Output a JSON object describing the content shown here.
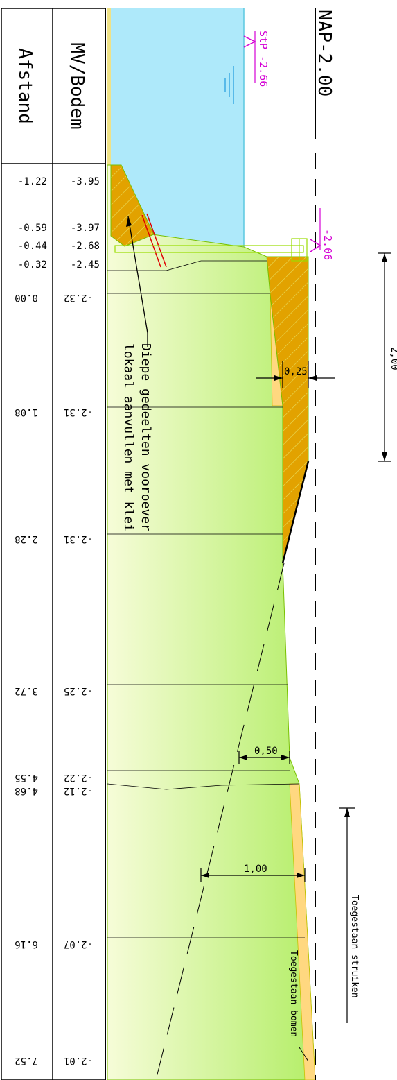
{
  "header": {
    "col1": "Afstand",
    "col2": "MV/Bodem",
    "reference": "NAP-2.00"
  },
  "rows_top": [
    {
      "afstand": "-1.22",
      "bodem": "-3.95"
    },
    {
      "afstand": "-0.59",
      "bodem": "-3.97"
    },
    {
      "afstand": "-0.44",
      "bodem": "-2.68"
    },
    {
      "afstand": "-0.32",
      "bodem": "-2.45"
    }
  ],
  "rows_rot": [
    {
      "afstand": "0.00",
      "bodem": "-2.32"
    },
    {
      "afstand": "1.08",
      "bodem": "-2.31"
    },
    {
      "afstand": "2.28",
      "bodem": "-2.31"
    },
    {
      "afstand": "3.72",
      "bodem": "-2.25"
    },
    {
      "afstand": "4.55",
      "bodem": "-2.22"
    },
    {
      "afstand": "4.68",
      "bodem": "-2.12"
    },
    {
      "afstand": "6.16",
      "bodem": "-2.07"
    },
    {
      "afstand": "7.52",
      "bodem": "-2.01"
    }
  ],
  "water": {
    "label_stp": "StP -2.66",
    "label_level": "-2.06"
  },
  "annotation": {
    "line1": "Diepe gedeelten vooroever",
    "line2": "lokaal aanvullen met klei"
  },
  "dimensions": {
    "d_200": "2,00",
    "d_025": "0,25",
    "d_050": "0,50",
    "d_100": "1,00"
  },
  "vegetation": {
    "shrubs": "Toegestaan struiken",
    "trees": "Toegestaan bomen"
  },
  "colors": {
    "water": "#aee9fa",
    "clay": "#e2a200",
    "sand": "#ffd880",
    "grass_light": "#f5fcd6",
    "grass_dark": "#b6f06a",
    "magenta": "#d400d4",
    "red": "#e00000"
  }
}
